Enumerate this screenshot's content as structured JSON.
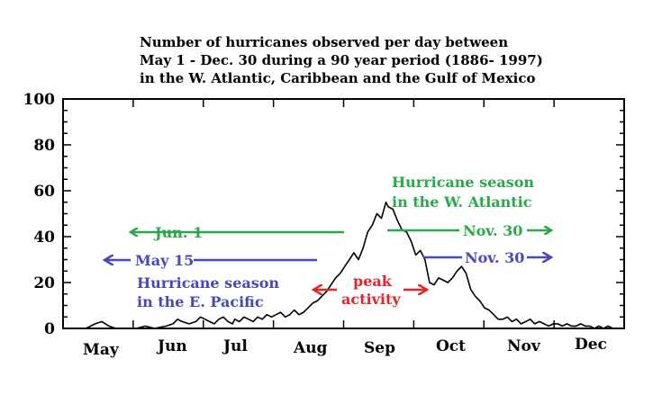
{
  "colors": {
    "atlantic": "#2aa84a",
    "pacific": "#4848b8",
    "peak": "#e0262a",
    "line": "#000000"
  },
  "chart_data": {
    "type": "line",
    "title_lines": [
      "Number of hurricanes observed per day between",
      "May 1 - Dec. 30 during a 90 year period (1886- 1997)",
      "in the W. Atlantic, Caribbean and the Gulf of Mexico"
    ],
    "xlabel": "",
    "ylabel": "",
    "ylim": [
      0,
      100
    ],
    "xlim": [
      0,
      245
    ],
    "y_ticks": [
      "0",
      "20",
      "40",
      "60",
      "80",
      "100"
    ],
    "months": [
      "May",
      "Jun",
      "Jul",
      "Aug",
      "Sep",
      "Oct",
      "Nov",
      "Dec"
    ],
    "grid": false,
    "annotations": {
      "atlantic_season": [
        "Hurricane season",
        "in the W. Atlantic"
      ],
      "atlantic_start": "Jun. 1",
      "atlantic_end": "Nov. 30",
      "pacific_start": "May 15",
      "pacific_end": "Nov. 30",
      "pacific_season": [
        "Hurricane season",
        "in the E. Pacific"
      ],
      "peak": [
        "peak",
        "activity"
      ]
    },
    "series": [
      {
        "x": [
          0,
          10,
          14,
          17,
          20,
          23,
          26,
          32,
          36,
          40,
          45,
          48,
          50,
          52,
          55,
          58,
          60,
          62,
          64,
          66,
          68,
          70,
          72,
          74,
          75,
          77,
          79,
          81,
          83,
          85,
          87,
          89,
          91,
          93,
          95,
          97,
          99,
          101,
          103,
          105,
          107,
          109,
          111,
          113,
          115,
          117,
          119,
          121,
          123,
          125,
          127,
          129,
          131,
          133,
          135,
          137,
          139,
          141,
          142,
          144,
          146,
          148,
          150,
          152,
          154,
          156,
          158,
          160,
          162,
          164,
          166,
          168,
          170,
          172,
          174,
          176,
          178,
          180,
          182,
          184,
          186,
          188,
          190,
          192,
          194,
          196,
          198,
          200,
          202,
          204,
          206,
          208,
          210,
          212,
          214,
          216,
          218,
          220,
          222,
          224,
          226,
          228,
          230,
          232,
          234,
          236,
          238,
          240
        ],
        "y": [
          0,
          0,
          2,
          3,
          1,
          0,
          0,
          0,
          1,
          0,
          1,
          2,
          4,
          3,
          2,
          3,
          5,
          4,
          3,
          2,
          4,
          5,
          3,
          2,
          4,
          3,
          5,
          4,
          3,
          5,
          4,
          6,
          5,
          6,
          7,
          5,
          6,
          8,
          6,
          7,
          9,
          11,
          12,
          14,
          16,
          19,
          22,
          24,
          27,
          30,
          33,
          30,
          35,
          42,
          45,
          50,
          48,
          55,
          53,
          52,
          47,
          43,
          42,
          38,
          32,
          34,
          30,
          20,
          19,
          22,
          21,
          20,
          22,
          25,
          27,
          24,
          17,
          14,
          12,
          9,
          8,
          6,
          4,
          4,
          5,
          3,
          4,
          2,
          3,
          4,
          2,
          3,
          2,
          1,
          2,
          2,
          1,
          2,
          1,
          1,
          2,
          1,
          1,
          0,
          1,
          0,
          1,
          0
        ]
      }
    ]
  }
}
